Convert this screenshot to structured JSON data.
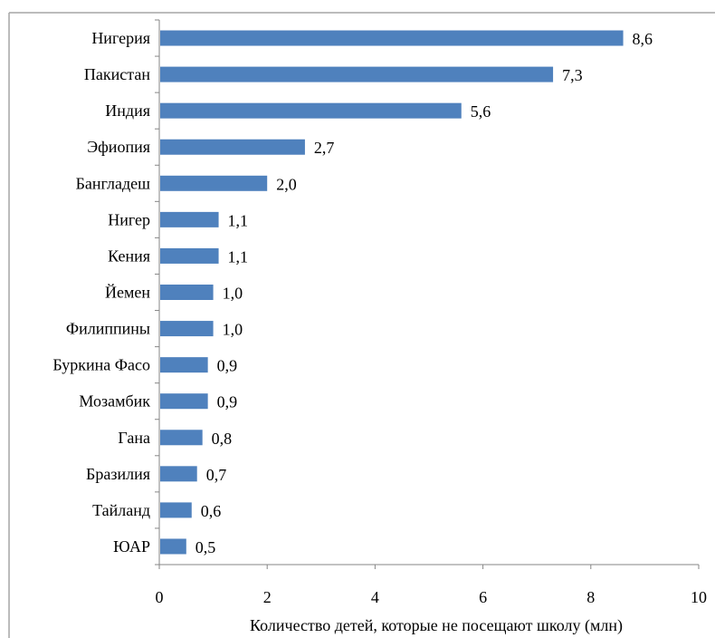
{
  "chart_data": {
    "type": "bar",
    "orientation": "horizontal",
    "categories": [
      "Нигерия",
      "Пакистан",
      "Индия",
      "Эфиопия",
      "Бангладеш",
      "Нигер",
      "Кения",
      "Йемен",
      "Филиппины",
      "Буркина Фасо",
      "Мозамбик",
      "Гана",
      "Бразилия",
      "Тайланд",
      "ЮАР"
    ],
    "values": [
      8.6,
      7.3,
      5.6,
      2.7,
      2.0,
      1.1,
      1.1,
      1.0,
      1.0,
      0.9,
      0.9,
      0.8,
      0.7,
      0.6,
      0.5
    ],
    "value_labels": [
      "8,6",
      "7,3",
      "5,6",
      "2,7",
      "2,0",
      "1,1",
      "1,1",
      "1,0",
      "1,0",
      "0,9",
      "0,9",
      "0,8",
      "0,7",
      "0,6",
      "0,5"
    ],
    "xlabel": "Количество детей, которые не посещают школу (млн)",
    "ylabel": "",
    "title": "",
    "xlim": [
      0,
      10
    ],
    "xticks": [
      0,
      2,
      4,
      6,
      8,
      10
    ],
    "xtick_labels": [
      "0",
      "2",
      "4",
      "6",
      "8",
      "10"
    ],
    "grid": false,
    "legend": "none",
    "bar_color": "#4f81bd"
  }
}
